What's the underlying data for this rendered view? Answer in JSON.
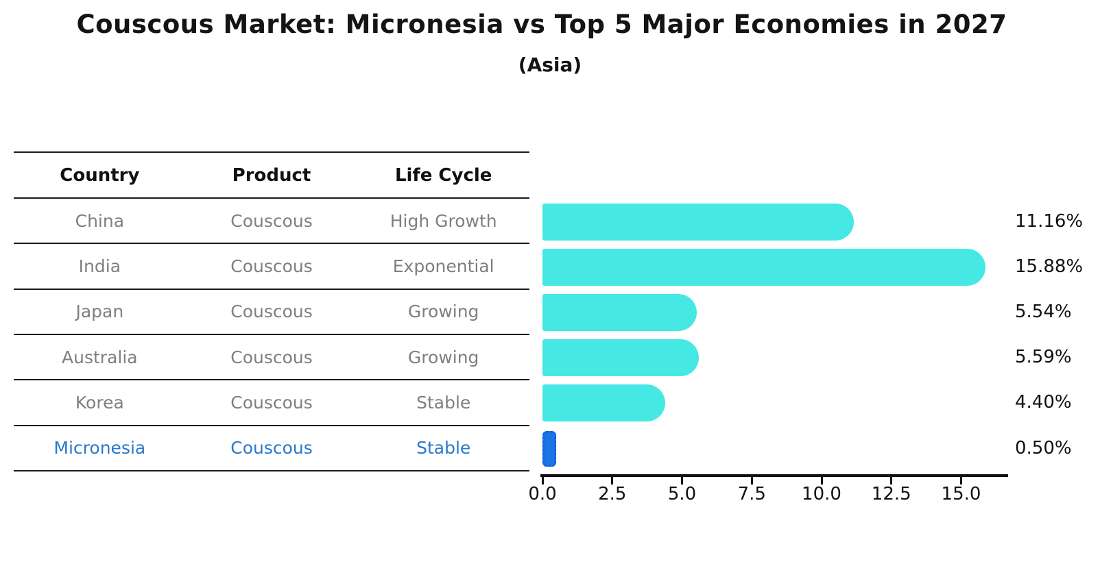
{
  "header": {
    "title": "Couscous Market: Micronesia vs Top 5 Major Economies in 2027",
    "subtitle": "(Asia)"
  },
  "table": {
    "columns": [
      "Country",
      "Product",
      "Life Cycle"
    ],
    "rows": [
      {
        "country": "China",
        "product": "Couscous",
        "life_cycle": "High Growth",
        "highlighted": false
      },
      {
        "country": "India",
        "product": "Couscous",
        "life_cycle": "Exponential",
        "highlighted": false
      },
      {
        "country": "Japan",
        "product": "Couscous",
        "life_cycle": "Growing",
        "highlighted": false
      },
      {
        "country": "Australia",
        "product": "Couscous",
        "life_cycle": "Growing",
        "highlighted": false
      },
      {
        "country": "Korea",
        "product": "Couscous",
        "life_cycle": "Stable",
        "highlighted": false
      },
      {
        "country": "Micronesia",
        "product": "Couscous",
        "life_cycle": "Stable",
        "highlighted": true
      }
    ]
  },
  "chart_data": {
    "type": "bar",
    "orientation": "horizontal",
    "title": "Couscous Market: Micronesia vs Top 5 Major Economies in 2027",
    "subtitle": "(Asia)",
    "categories": [
      "China",
      "India",
      "Japan",
      "Australia",
      "Korea",
      "Micronesia"
    ],
    "values": [
      11.16,
      15.88,
      5.54,
      5.59,
      4.4,
      0.5
    ],
    "value_labels": [
      "11.16%",
      "15.88%",
      "5.54%",
      "5.59%",
      "4.40%",
      "0.50%"
    ],
    "xlabel": "",
    "ylabel": "",
    "xlim": [
      0,
      16.7
    ],
    "x_ticks": [
      0.0,
      2.5,
      5.0,
      7.5,
      10.0,
      12.5,
      15.0
    ],
    "x_tick_labels": [
      "0.0",
      "2.5",
      "5.0",
      "7.5",
      "10.0",
      "12.5",
      "15.0"
    ],
    "grid": false,
    "legend": false,
    "bar_color": "#46e8e4",
    "highlight_color": "#1d74e8",
    "highlight_index": 5,
    "highlight_text_color": "#2979cc"
  }
}
